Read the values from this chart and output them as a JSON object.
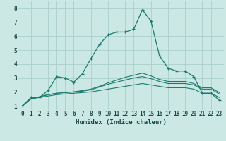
{
  "xlabel": "Humidex (Indice chaleur)",
  "ylabel": "",
  "bg_color": "#cce8e4",
  "grid_color": "#aacfcb",
  "line_color": "#1a7a6e",
  "xlim": [
    -0.5,
    23.5
  ],
  "ylim": [
    0.7,
    8.5
  ],
  "yticks": [
    1,
    2,
    3,
    4,
    5,
    6,
    7,
    8
  ],
  "xticks": [
    0,
    1,
    2,
    3,
    4,
    5,
    6,
    7,
    8,
    9,
    10,
    11,
    12,
    13,
    14,
    15,
    16,
    17,
    18,
    19,
    20,
    21,
    22,
    23
  ],
  "line1_x": [
    0,
    1,
    2,
    3,
    4,
    5,
    6,
    7,
    8,
    9,
    10,
    11,
    12,
    13,
    14,
    15,
    16,
    17,
    18,
    19,
    20,
    21,
    22,
    23
  ],
  "line1_y": [
    1.0,
    1.6,
    1.6,
    2.1,
    3.1,
    3.0,
    2.7,
    3.3,
    4.4,
    5.4,
    6.1,
    6.3,
    6.3,
    6.5,
    7.9,
    7.1,
    4.6,
    3.7,
    3.5,
    3.5,
    3.1,
    1.9,
    1.9,
    1.4
  ],
  "line2_x": [
    0,
    1,
    2,
    3,
    4,
    5,
    6,
    7,
    8,
    9,
    10,
    11,
    12,
    13,
    14,
    15,
    16,
    17,
    18,
    19,
    20,
    21,
    22,
    23
  ],
  "line2_y": [
    1.0,
    1.5,
    1.6,
    1.7,
    1.8,
    1.85,
    1.9,
    1.95,
    2.0,
    2.1,
    2.2,
    2.3,
    2.4,
    2.5,
    2.6,
    2.5,
    2.4,
    2.3,
    2.3,
    2.3,
    2.2,
    1.9,
    1.9,
    1.6
  ],
  "line3_x": [
    0,
    1,
    2,
    3,
    4,
    5,
    6,
    7,
    8,
    9,
    10,
    11,
    12,
    13,
    14,
    15,
    16,
    17,
    18,
    19,
    20,
    21,
    22,
    23
  ],
  "line3_y": [
    1.0,
    1.5,
    1.65,
    1.8,
    1.9,
    1.95,
    2.0,
    2.05,
    2.15,
    2.35,
    2.55,
    2.7,
    2.85,
    3.0,
    3.1,
    2.95,
    2.75,
    2.6,
    2.6,
    2.6,
    2.5,
    2.2,
    2.2,
    1.85
  ],
  "line4_x": [
    0,
    1,
    2,
    3,
    4,
    5,
    6,
    7,
    8,
    9,
    10,
    11,
    12,
    13,
    14,
    15,
    16,
    17,
    18,
    19,
    20,
    21,
    22,
    23
  ],
  "line4_y": [
    1.0,
    1.5,
    1.65,
    1.8,
    1.9,
    1.95,
    2.0,
    2.1,
    2.2,
    2.4,
    2.65,
    2.85,
    3.05,
    3.2,
    3.35,
    3.15,
    2.9,
    2.75,
    2.75,
    2.75,
    2.6,
    2.3,
    2.3,
    1.95
  ]
}
